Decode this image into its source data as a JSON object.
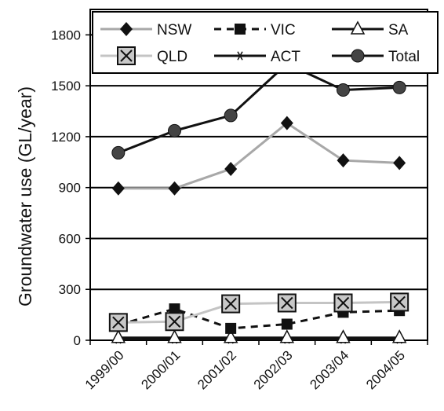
{
  "chart_data": {
    "type": "line",
    "title": "",
    "xlabel": "",
    "ylabel": "Groundwater use (GL/year)",
    "categories": [
      "1999/00",
      "2000/01",
      "2001/02",
      "2002/03",
      "2003/04",
      "2004/05"
    ],
    "ylim": [
      0,
      1950
    ],
    "yticks": [
      0,
      300,
      600,
      900,
      1200,
      1500,
      1800
    ],
    "grid": "horizontal",
    "legend_position": "top",
    "series": [
      {
        "name": "NSW",
        "values": [
          895,
          895,
          1010,
          1280,
          1060,
          1045
        ],
        "color": "#a8a8a8",
        "marker": "diamond",
        "line": "solid"
      },
      {
        "name": "VIC",
        "values": [
          90,
          185,
          70,
          95,
          165,
          175
        ],
        "color": "#111111",
        "marker": "square",
        "line": "dashed"
      },
      {
        "name": "SA",
        "values": [
          15,
          15,
          15,
          15,
          15,
          15
        ],
        "color": "#111111",
        "marker": "triangle",
        "line": "solid"
      },
      {
        "name": "QLD",
        "values": [
          105,
          110,
          215,
          220,
          220,
          225
        ],
        "color": "#c4c4c4",
        "marker": "square-x",
        "line": "solid"
      },
      {
        "name": "ACT",
        "values": [
          5,
          5,
          5,
          5,
          5,
          5
        ],
        "color": "#111111",
        "marker": "asterisk",
        "line": "solid"
      },
      {
        "name": "Total",
        "values": [
          1105,
          1235,
          1325,
          1630,
          1475,
          1490
        ],
        "color": "#111111",
        "marker": "circle",
        "line": "solid"
      }
    ]
  }
}
